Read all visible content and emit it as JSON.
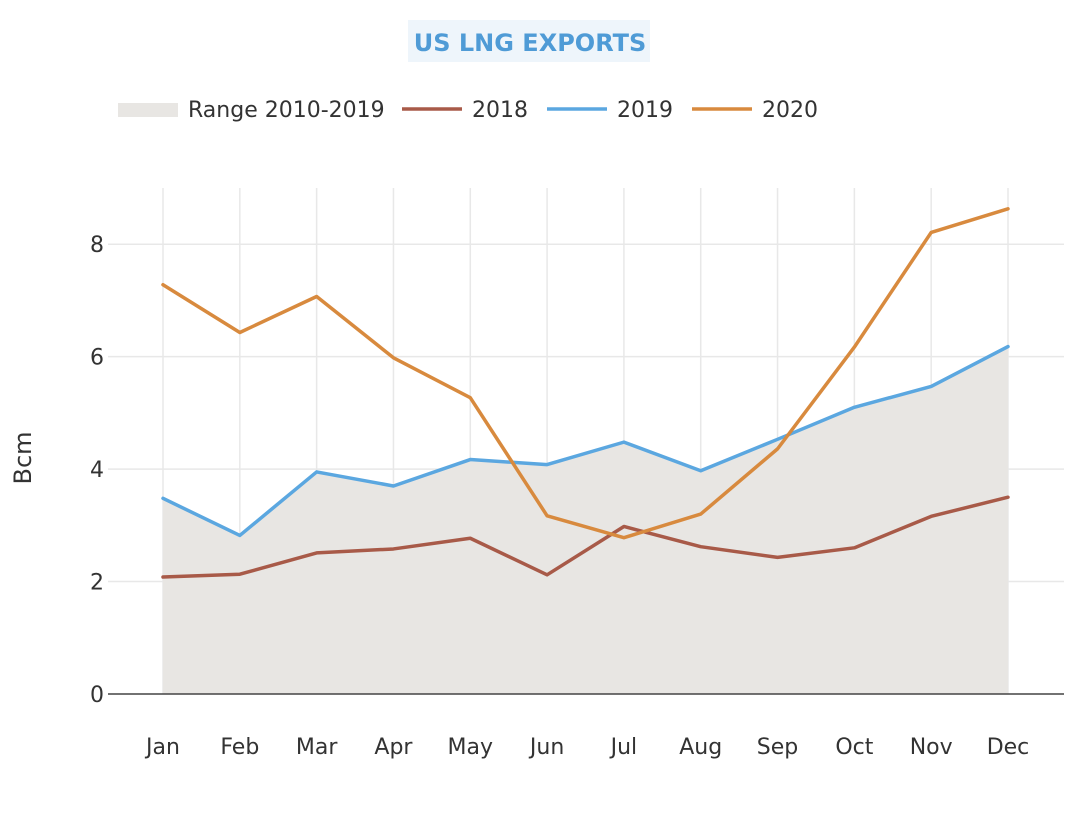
{
  "chart_data": {
    "type": "line",
    "title": "US LNG EXPORTS",
    "ylabel": "Bcm",
    "xlabel": "",
    "ylim": [
      0,
      9
    ],
    "yticks": [
      0,
      2,
      4,
      6,
      8
    ],
    "grid": true,
    "legend_position": "top-left",
    "categories": [
      "Jan",
      "Feb",
      "Mar",
      "Apr",
      "May",
      "Jun",
      "Jul",
      "Aug",
      "Sep",
      "Oct",
      "Nov",
      "Dec"
    ],
    "range": {
      "name": "Range 2010-2019",
      "color": "#e8e6e3",
      "lower": [
        0,
        0,
        0,
        0,
        0,
        0,
        0,
        0,
        0,
        0,
        0,
        0
      ],
      "upper": [
        3.48,
        2.82,
        3.95,
        3.7,
        4.17,
        4.08,
        4.48,
        3.97,
        4.53,
        5.1,
        5.47,
        6.18
      ]
    },
    "series": [
      {
        "name": "2018",
        "color": "#a85a48",
        "values": [
          2.08,
          2.13,
          2.51,
          2.58,
          2.77,
          2.12,
          2.98,
          2.62,
          2.43,
          2.6,
          3.16,
          3.5
        ]
      },
      {
        "name": "2019",
        "color": "#5ba7e0",
        "values": [
          3.48,
          2.82,
          3.95,
          3.7,
          4.17,
          4.08,
          4.48,
          3.97,
          4.53,
          5.1,
          5.47,
          6.18
        ]
      },
      {
        "name": "2020",
        "color": "#d88a3e",
        "values": [
          7.28,
          6.43,
          7.07,
          5.98,
          5.27,
          3.17,
          2.78,
          3.2,
          4.36,
          6.17,
          8.21,
          8.63
        ]
      }
    ]
  }
}
